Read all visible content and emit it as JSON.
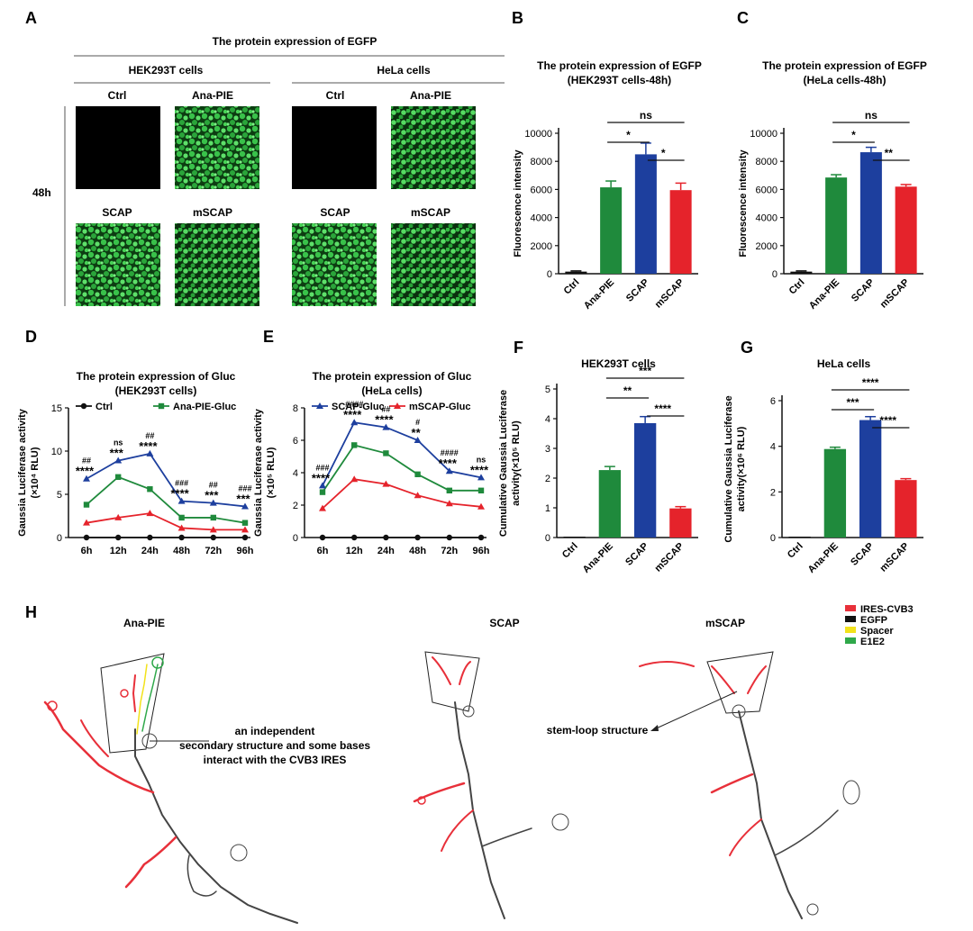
{
  "panelA": {
    "letter": "A",
    "title": "The protein expression of EGFP",
    "groups": [
      "HEK293T cells",
      "HeLa cells"
    ],
    "top_labels": [
      "Ctrl",
      "Ana-PIE",
      "Ctrl",
      "Ana-PIE"
    ],
    "bottom_labels": [
      "SCAP",
      "mSCAP",
      "SCAP",
      "mSCAP"
    ],
    "time": "48h"
  },
  "panelB": {
    "letter": "B"
  },
  "panelC": {
    "letter": "C"
  },
  "panelD": {
    "letter": "D"
  },
  "panelE": {
    "letter": "E"
  },
  "panelF": {
    "letter": "F"
  },
  "panelG": {
    "letter": "G"
  },
  "panelH": {
    "letter": "H",
    "structures": [
      "Ana-PIE",
      "SCAP",
      "mSCAP"
    ],
    "annotation1": [
      "an independent",
      "secondary structure and some bases",
      "interact with the CVB3 IRES"
    ],
    "annotation2": "stem-loop structure",
    "legend": [
      {
        "name": "IRES-CVB3",
        "color": "#e8303a"
      },
      {
        "name": "EGFP",
        "color": "#111111"
      },
      {
        "name": "Spacer",
        "color": "#f2e21b"
      },
      {
        "name": "E1E2",
        "color": "#2fa84a"
      }
    ]
  },
  "colors": {
    "green": "#1f8a3c",
    "blue": "#1d3f9e",
    "red": "#e5232b",
    "black": "#111111"
  },
  "chart_data": [
    {
      "id": "B",
      "type": "bar",
      "title": "The protein expression of EGFP",
      "subtitle": "(HEK293T cells-48h)",
      "ylabel": "Fluorescence intensity",
      "categories": [
        "Ctrl",
        "Ana-PIE",
        "SCAP",
        "mSCAP"
      ],
      "values": [
        150,
        6150,
        8500,
        5950
      ],
      "errors": [
        50,
        450,
        800,
        500
      ],
      "colors": [
        "#111111",
        "#1f8a3c",
        "#1d3f9e",
        "#e5232b"
      ],
      "ylim": [
        0,
        10000
      ],
      "yticks": [
        "0",
        "2000",
        "4000",
        "6000",
        "8000",
        "10000"
      ],
      "sig": [
        {
          "from": 1,
          "to": 3,
          "label": "ns",
          "level": 0
        },
        {
          "from": 1,
          "to": 2,
          "label": "*",
          "level": 1
        },
        {
          "from": 2,
          "to": 3,
          "label": "*",
          "level": 2
        }
      ]
    },
    {
      "id": "C",
      "type": "bar",
      "title": "The protein expression of EGFP",
      "subtitle": "(HeLa cells-48h)",
      "ylabel": "Fluorescence intensity",
      "categories": [
        "Ctrl",
        "Ana-PIE",
        "SCAP",
        "mSCAP"
      ],
      "values": [
        150,
        6850,
        8650,
        6200
      ],
      "errors": [
        50,
        200,
        350,
        150
      ],
      "colors": [
        "#111111",
        "#1f8a3c",
        "#1d3f9e",
        "#e5232b"
      ],
      "ylim": [
        0,
        10000
      ],
      "yticks": [
        "0",
        "2000",
        "4000",
        "6000",
        "8000",
        "10000"
      ],
      "sig": [
        {
          "from": 1,
          "to": 3,
          "label": "ns",
          "level": 0
        },
        {
          "from": 1,
          "to": 2,
          "label": "*",
          "level": 1
        },
        {
          "from": 2,
          "to": 3,
          "label": "**",
          "level": 2
        }
      ]
    },
    {
      "id": "D",
      "type": "line",
      "title": "The protein expression of Gluc",
      "subtitle": "(HEK293T cells)",
      "ylabel": "Gaussia Luciferase activity",
      "ylabel2": "(×10⁴ RLU)",
      "x": [
        "6h",
        "12h",
        "24h",
        "48h",
        "72h",
        "96h"
      ],
      "ylim": [
        0,
        15
      ],
      "yticks": [
        "0",
        "5",
        "10",
        "15"
      ],
      "series": [
        {
          "name": "Ctrl",
          "color": "#111111",
          "marker": "circle",
          "values": [
            0,
            0,
            0,
            0,
            0,
            0
          ]
        },
        {
          "name": "Ana-PIE-Gluc",
          "color": "#1f8a3c",
          "marker": "square",
          "values": [
            3.8,
            7.0,
            5.6,
            2.3,
            2.3,
            1.7
          ]
        },
        {
          "name": "SCAP-Gluc",
          "color": "#1d3f9e",
          "marker": "triangle",
          "values": [
            6.8,
            8.9,
            9.7,
            4.2,
            4.0,
            3.6
          ]
        },
        {
          "name": "mSCAP-Gluc",
          "color": "#e5232b",
          "marker": "triangle",
          "values": [
            1.7,
            2.3,
            2.8,
            1.1,
            0.9,
            0.9
          ]
        }
      ],
      "legend": [
        "Ctrl",
        "Ana-PIE-Gluc"
      ],
      "annotations": [
        {
          "x": 0,
          "top": "##",
          "bottom": "****"
        },
        {
          "x": 1,
          "top": "ns",
          "bottom": "***"
        },
        {
          "x": 2,
          "top": "##",
          "bottom": "****"
        },
        {
          "x": 3,
          "top": "###",
          "bottom": "****"
        },
        {
          "x": 4,
          "top": "##",
          "bottom": "***"
        },
        {
          "x": 5,
          "top": "###",
          "bottom": "***"
        }
      ]
    },
    {
      "id": "E",
      "type": "line",
      "title": "The protein expression of Gluc",
      "subtitle": "(HeLa cells)",
      "ylabel": "Gaussia Luciferase activity",
      "ylabel2": "(×10⁵ RLU)",
      "x": [
        "6h",
        "12h",
        "24h",
        "48h",
        "72h",
        "96h"
      ],
      "ylim": [
        0,
        8
      ],
      "yticks": [
        "0",
        "2",
        "4",
        "6",
        "8"
      ],
      "series": [
        {
          "name": "Ctrl",
          "color": "#111111",
          "marker": "circle",
          "values": [
            0,
            0,
            0,
            0,
            0,
            0
          ]
        },
        {
          "name": "Ana-PIE-Gluc",
          "color": "#1f8a3c",
          "marker": "square",
          "values": [
            2.8,
            5.7,
            5.2,
            3.9,
            2.9,
            2.9
          ]
        },
        {
          "name": "SCAP-Gluc",
          "color": "#1d3f9e",
          "marker": "triangle",
          "values": [
            3.2,
            7.1,
            6.8,
            6.0,
            4.1,
            3.7
          ]
        },
        {
          "name": "mSCAP-Gluc",
          "color": "#e5232b",
          "marker": "triangle",
          "values": [
            1.8,
            3.6,
            3.3,
            2.6,
            2.1,
            1.9
          ]
        }
      ],
      "legend": [
        "SCAP-Gluc",
        "mSCAP-Gluc"
      ],
      "annotations": [
        {
          "x": 0,
          "top": "###",
          "bottom": "****"
        },
        {
          "x": 1,
          "top": "####",
          "bottom": "****"
        },
        {
          "x": 2,
          "top": "##",
          "bottom": "****"
        },
        {
          "x": 3,
          "top": "#",
          "bottom": "**"
        },
        {
          "x": 4,
          "top": "####",
          "bottom": "****"
        },
        {
          "x": 5,
          "top": "ns",
          "bottom": "****"
        }
      ]
    },
    {
      "id": "F",
      "type": "bar",
      "title": "HEK293T cells",
      "subtitle": "",
      "ylabel": "Cumulative Gaussia Luciferase",
      "ylabel2": "activity(×10⁵ RLU)",
      "categories": [
        "Ctrl",
        "Ana-PIE",
        "SCAP",
        "mSCAP"
      ],
      "values": [
        0,
        2.27,
        3.85,
        0.98
      ],
      "errors": [
        0,
        0.12,
        0.22,
        0.06
      ],
      "colors": [
        "#111111",
        "#1f8a3c",
        "#1d3f9e",
        "#e5232b"
      ],
      "ylim": [
        0,
        5
      ],
      "yticks": [
        "0",
        "1",
        "2",
        "3",
        "4",
        "5"
      ],
      "sig": [
        {
          "from": 1,
          "to": 3,
          "label": "***",
          "level": 0
        },
        {
          "from": 1,
          "to": 2,
          "label": "**",
          "level": 1
        },
        {
          "from": 2,
          "to": 3,
          "label": "****",
          "level": 2
        }
      ]
    },
    {
      "id": "G",
      "type": "bar",
      "title": "HeLa cells",
      "subtitle": "",
      "ylabel": "Cumulative Gaussia Luciferase",
      "ylabel2": "activity(×10⁶ RLU)",
      "categories": [
        "Ctrl",
        "Ana-PIE",
        "SCAP",
        "mSCAP"
      ],
      "values": [
        0,
        3.88,
        5.15,
        2.52
      ],
      "errors": [
        0,
        0.08,
        0.15,
        0.06
      ],
      "colors": [
        "#111111",
        "#1f8a3c",
        "#1d3f9e",
        "#e5232b"
      ],
      "ylim": [
        0,
        6
      ],
      "yticks": [
        "0",
        "2",
        "4",
        "6"
      ],
      "sig": [
        {
          "from": 1,
          "to": 3,
          "label": "****",
          "level": 0
        },
        {
          "from": 1,
          "to": 2,
          "label": "***",
          "level": 1
        },
        {
          "from": 2,
          "to": 3,
          "label": "****",
          "level": 2
        }
      ]
    }
  ]
}
